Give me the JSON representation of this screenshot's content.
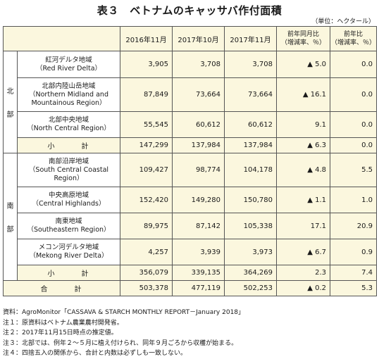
{
  "title": "表３　ベトナムのキャッサバ作付面積",
  "unit": "（単位：ヘクタール）",
  "headers": {
    "col1": "2016年11月",
    "col2": "2017年10月",
    "col3": "2017年11月",
    "col4_line1": "前年同月比",
    "col4_line2": "（増減率、％）",
    "col5_line1": "前年比",
    "col5_line2": "（増減率、％）"
  },
  "groups": {
    "north": {
      "c1": "北",
      "c2": "部"
    },
    "south": {
      "c1": "南",
      "c2": "部"
    }
  },
  "rows": [
    {
      "l1": "紅河デルタ地域",
      "l2": "（Red River Delta）",
      "l3": "",
      "v1": "3,905",
      "v2": "3,708",
      "v3": "3,708",
      "v4": "▲ 5.0",
      "v5": "0.0"
    },
    {
      "l1": "北部内陸山岳地域",
      "l2": "（Northern Midland and",
      "l3": "Mountainous Region）",
      "v1": "87,849",
      "v2": "73,664",
      "v3": "73,664",
      "v4": "▲ 16.1",
      "v5": "0.0"
    },
    {
      "l1": "北部中央地域",
      "l2": "（North Central Region）",
      "l3": "",
      "v1": "55,545",
      "v2": "60,612",
      "v3": "60,612",
      "v4": "9.1",
      "v5": "0.0"
    },
    {
      "l1": "小　計",
      "v1": "147,299",
      "v2": "137,984",
      "v3": "137,984",
      "v4": "▲ 6.3",
      "v5": "0.0"
    },
    {
      "l1": "南部沿岸地域",
      "l2": "（South Central Coastal",
      "l3": "Region）",
      "v1": "109,427",
      "v2": "98,774",
      "v3": "104,178",
      "v4": "▲ 4.8",
      "v5": "5.5"
    },
    {
      "l1": "中央高原地域",
      "l2": "（Central Highlands）",
      "l3": "",
      "v1": "152,420",
      "v2": "149,280",
      "v3": "150,780",
      "v4": "▲ 1.1",
      "v5": "1.0"
    },
    {
      "l1": "南東地域",
      "l2": "（Southeastern Region）",
      "l3": "",
      "v1": "89,975",
      "v2": "87,142",
      "v3": "105,338",
      "v4": "17.1",
      "v5": "20.9"
    },
    {
      "l1": "メコン河デルタ地域",
      "l2": "（Mekong River Delta）",
      "l3": "",
      "v1": "4,257",
      "v2": "3,939",
      "v3": "3,973",
      "v4": "▲ 6.7",
      "v5": "0.9"
    },
    {
      "l1": "小　計",
      "v1": "356,079",
      "v2": "339,135",
      "v3": "364,269",
      "v4": "2.3",
      "v5": "7.4"
    },
    {
      "l1": "合　計",
      "v1": "503,378",
      "v2": "477,119",
      "v3": "502,253",
      "v4": "▲ 0.2",
      "v5": "5.3"
    }
  ],
  "notes": [
    "資料：AgroMonitor「CASSAVA & STARCH MONTHLY REPORT－January 2018」",
    "注１：原資料はベトナム農業農村開発省。",
    "注２：2017年11月15日時点の推定値。",
    "注３：北部では、例年２～５月に植え付けられ、同年９月ごろから収穫が始まる。",
    "注４：四捨五入の関係から、合計と内数は必ずしも一致しない。"
  ]
}
